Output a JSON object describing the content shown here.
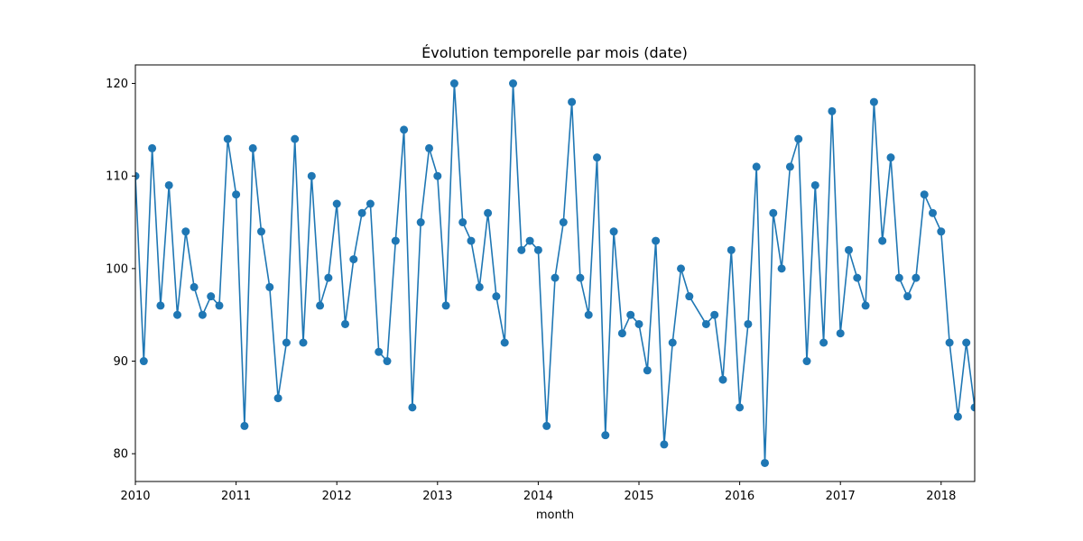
{
  "chart_data": {
    "type": "line",
    "title": "Évolution temporelle par mois (date)",
    "xlabel": "month",
    "ylabel": "",
    "color": "#1f77b4",
    "marker": "circle",
    "grid": false,
    "xlim": [
      "2010-01",
      "2018-05"
    ],
    "ylim": [
      77,
      122
    ],
    "yticks": [
      80,
      90,
      100,
      110,
      120
    ],
    "xticks": [
      {
        "label": "2010",
        "date": "2010-01"
      },
      {
        "label": "2011",
        "date": "2011-01"
      },
      {
        "label": "2012",
        "date": "2012-01"
      },
      {
        "label": "2013",
        "date": "2013-01"
      },
      {
        "label": "2014",
        "date": "2014-01"
      },
      {
        "label": "2015",
        "date": "2015-01"
      },
      {
        "label": "2016",
        "date": "2016-01"
      },
      {
        "label": "2017",
        "date": "2017-01"
      },
      {
        "label": "2018",
        "date": "2018-01"
      }
    ],
    "series": [
      {
        "points": [
          [
            "2010-01",
            110
          ],
          [
            "2010-02",
            90
          ],
          [
            "2010-03",
            113
          ],
          [
            "2010-04",
            96
          ],
          [
            "2010-05",
            109
          ],
          [
            "2010-06",
            95
          ],
          [
            "2010-07",
            104
          ],
          [
            "2010-08",
            98
          ],
          [
            "2010-09",
            95
          ],
          [
            "2010-10",
            97
          ],
          [
            "2010-11",
            96
          ],
          [
            "2010-12",
            114
          ],
          [
            "2011-01",
            108
          ],
          [
            "2011-02",
            83
          ],
          [
            "2011-03",
            113
          ],
          [
            "2011-04",
            104
          ],
          [
            "2011-05",
            98
          ],
          [
            "2011-06",
            86
          ],
          [
            "2011-07",
            92
          ],
          [
            "2011-08",
            114
          ],
          [
            "2011-09",
            92
          ],
          [
            "2011-10",
            110
          ],
          [
            "2011-11",
            96
          ],
          [
            "2011-12",
            99
          ],
          [
            "2012-01",
            107
          ],
          [
            "2012-02",
            94
          ],
          [
            "2012-03",
            101
          ],
          [
            "2012-04",
            106
          ],
          [
            "2012-05",
            107
          ],
          [
            "2012-06",
            91
          ],
          [
            "2012-07",
            90
          ],
          [
            "2012-08",
            103
          ],
          [
            "2012-09",
            115
          ],
          [
            "2012-10",
            85
          ],
          [
            "2012-11",
            105
          ],
          [
            "2012-12",
            113
          ],
          [
            "2013-01",
            110
          ],
          [
            "2013-02",
            96
          ],
          [
            "2013-03",
            120
          ],
          [
            "2013-04",
            105
          ],
          [
            "2013-05",
            103
          ],
          [
            "2013-06",
            98
          ],
          [
            "2013-07",
            106
          ],
          [
            "2013-08",
            97
          ],
          [
            "2013-09",
            92
          ],
          [
            "2013-10",
            120
          ],
          [
            "2013-11",
            102
          ],
          [
            "2013-12",
            103
          ],
          [
            "2014-01",
            102
          ],
          [
            "2014-02",
            83
          ],
          [
            "2014-03",
            99
          ],
          [
            "2014-04",
            105
          ],
          [
            "2014-05",
            118
          ],
          [
            "2014-06",
            99
          ],
          [
            "2014-07",
            95
          ],
          [
            "2014-08",
            112
          ],
          [
            "2014-09",
            82
          ],
          [
            "2014-10",
            104
          ],
          [
            "2014-11",
            93
          ],
          [
            "2014-12",
            95
          ],
          [
            "2015-01",
            94
          ],
          [
            "2015-02",
            89
          ],
          [
            "2015-03",
            103
          ],
          [
            "2015-04",
            81
          ],
          [
            "2015-05",
            92
          ],
          [
            "2015-06",
            100
          ],
          [
            "2015-07",
            97
          ],
          [
            "2015-09",
            94
          ],
          [
            "2015-10",
            95
          ],
          [
            "2015-11",
            88
          ],
          [
            "2015-12",
            102
          ],
          [
            "2016-01",
            85
          ],
          [
            "2016-02",
            94
          ],
          [
            "2016-03",
            111
          ],
          [
            "2016-04",
            79
          ],
          [
            "2016-05",
            106
          ],
          [
            "2016-06",
            100
          ],
          [
            "2016-07",
            111
          ],
          [
            "2016-08",
            114
          ],
          [
            "2016-09",
            90
          ],
          [
            "2016-10",
            109
          ],
          [
            "2016-11",
            92
          ],
          [
            "2016-12",
            117
          ],
          [
            "2017-01",
            93
          ],
          [
            "2017-02",
            102
          ],
          [
            "2017-03",
            99
          ],
          [
            "2017-04",
            96
          ],
          [
            "2017-05",
            118
          ],
          [
            "2017-06",
            103
          ],
          [
            "2017-07",
            112
          ],
          [
            "2017-08",
            99
          ],
          [
            "2017-09",
            97
          ],
          [
            "2017-10",
            99
          ],
          [
            "2017-11",
            108
          ],
          [
            "2017-12",
            106
          ],
          [
            "2018-01",
            104
          ],
          [
            "2018-02",
            92
          ],
          [
            "2018-03",
            84
          ],
          [
            "2018-04",
            92
          ],
          [
            "2018-05",
            85
          ]
        ]
      }
    ]
  }
}
